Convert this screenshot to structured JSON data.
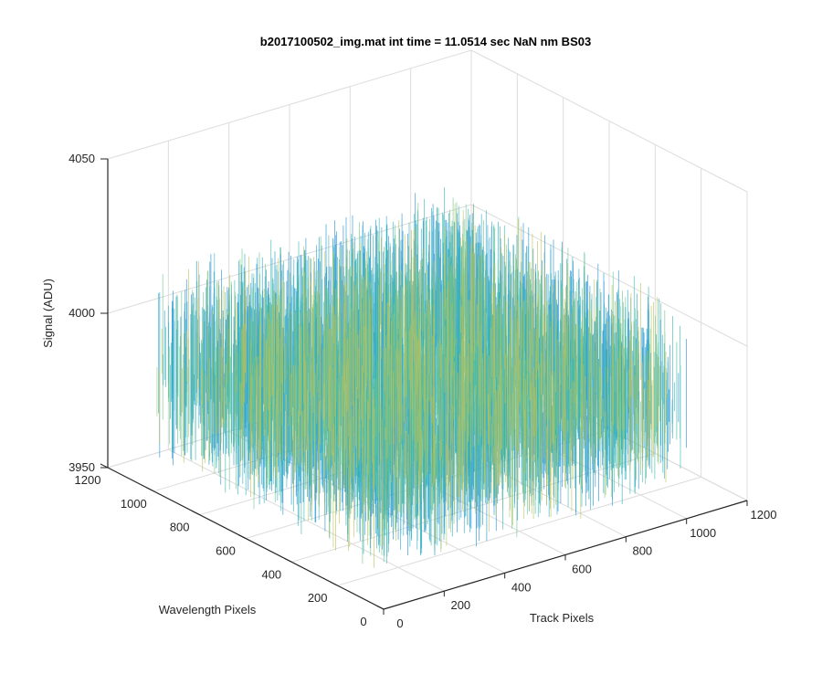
{
  "chart_data": {
    "type": "surface",
    "title": "b2017100502_img.mat int time = 11.0514 sec  NaN nm BS03",
    "xlabel": "Track Pixels",
    "ylabel": "Wavelength Pixels",
    "zlabel": "Signal (ADU)",
    "x_ticks": [
      "0",
      "200",
      "400",
      "600",
      "800",
      "1000",
      "1200"
    ],
    "y_ticks": [
      "0",
      "200",
      "400",
      "600",
      "800",
      "1000",
      "1200"
    ],
    "z_ticks": [
      "3950",
      "4000",
      "4050"
    ],
    "xlim": [
      0,
      1200
    ],
    "ylim": [
      0,
      1200
    ],
    "zlim": [
      3950,
      4050
    ],
    "data_extent": {
      "x": [
        0,
        1024
      ],
      "y": [
        0,
        1024
      ]
    },
    "signal_mean": 3987,
    "signal_spread": [
      3960,
      4020
    ],
    "colormap": [
      "#1f8fd4",
      "#2aa7c9",
      "#35b7b0",
      "#6cc48c",
      "#b9c25a"
    ],
    "grid": true
  }
}
